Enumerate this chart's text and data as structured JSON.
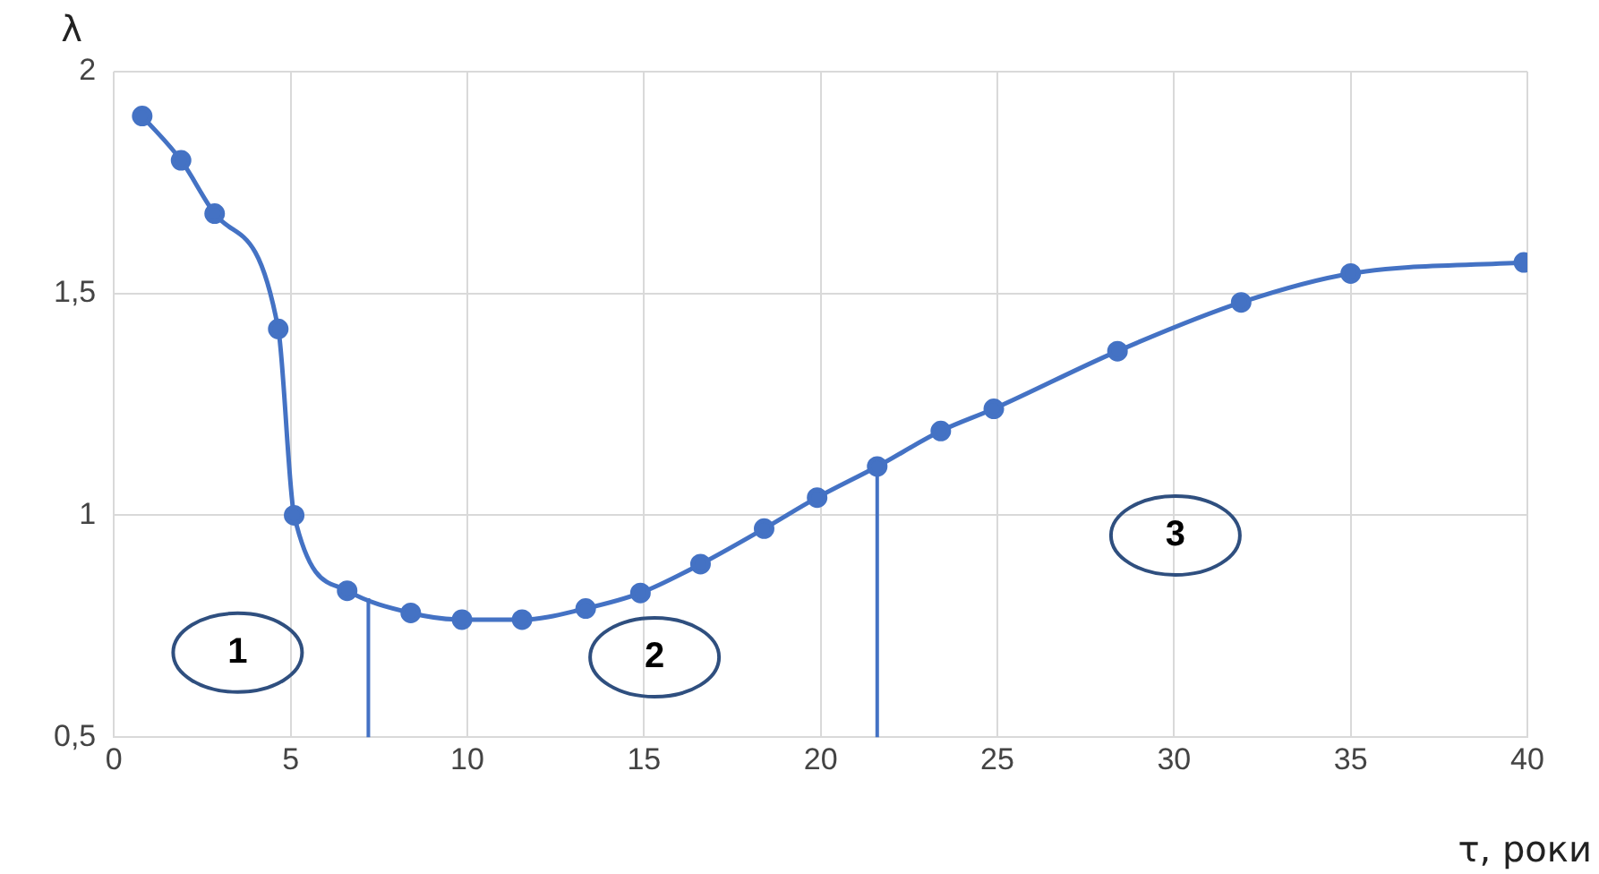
{
  "chart_data": {
    "type": "line",
    "xlabel": "τ, роки",
    "ylabel": "λ",
    "x": [
      0.8,
      1.9,
      2.85,
      4.65,
      5.1,
      6.6,
      8.4,
      9.85,
      11.55,
      13.35,
      14.9,
      16.6,
      18.4,
      19.9,
      21.6,
      23.4,
      24.9,
      28.4,
      31.9,
      35,
      39.9
    ],
    "series": [
      {
        "color": "#4472c4",
        "values": [
          1.9,
          1.8,
          1.68,
          1.42,
          1.0,
          0.83,
          0.78,
          0.765,
          0.765,
          0.79,
          0.825,
          0.89,
          0.97,
          1.04,
          1.11,
          1.19,
          1.24,
          1.37,
          1.48,
          1.545,
          1.57
        ]
      }
    ],
    "xlim": [
      0,
      40
    ],
    "xticks": [
      0,
      5,
      10,
      15,
      20,
      25,
      30,
      35,
      40
    ],
    "ylim": [
      0.5,
      2
    ],
    "yticks": [
      {
        "value": 0.5,
        "label": "0,5"
      },
      1,
      {
        "value": 1.5,
        "label": "1,5"
      },
      2
    ],
    "ref_lines": [
      {
        "axis": "x",
        "value": 7.2,
        "color": "#4472c4"
      },
      {
        "axis": "x",
        "value": 21.6,
        "color": "#4472c4"
      }
    ],
    "annotations": [
      "1",
      "2",
      "3"
    ],
    "grid": true,
    "legend": false,
    "marker": "circle",
    "line_style": "solid"
  }
}
